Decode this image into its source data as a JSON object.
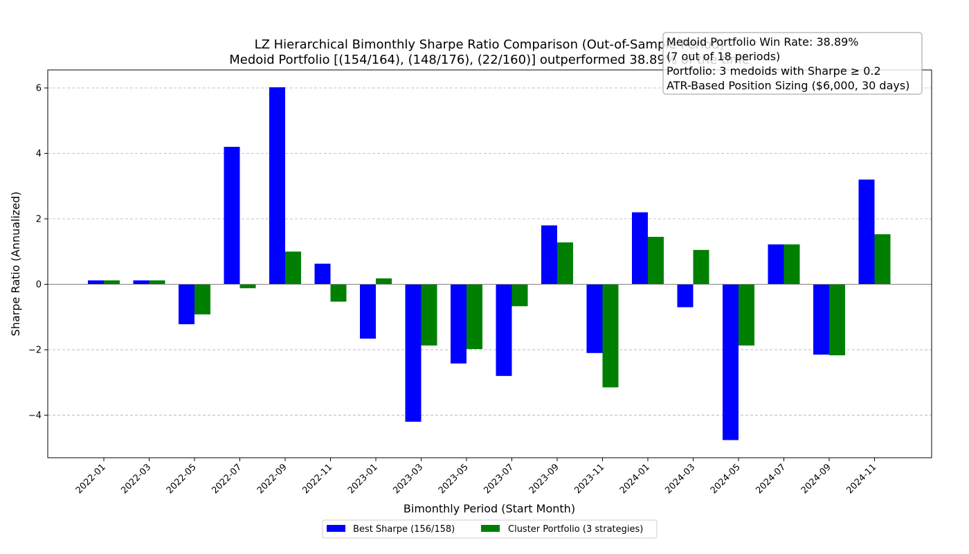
{
  "chart_data": {
    "type": "bar",
    "title": "LZ Hierarchical Bimonthly Sharpe Ratio Comparison (Out-of-Sample Period)",
    "subtitle": "Medoid Portfolio [(154/164), (148/176), (22/160)] outperformed 38.89% of the time",
    "xlabel": "Bimonthly Period (Start Month)",
    "ylabel": "Sharpe Ratio (Annualized)",
    "categories": [
      "2022-01",
      "2022-03",
      "2022-05",
      "2022-07",
      "2022-09",
      "2022-11",
      "2023-01",
      "2023-03",
      "2023-05",
      "2023-07",
      "2023-09",
      "2023-11",
      "2024-01",
      "2024-03",
      "2024-05",
      "2024-07",
      "2024-09",
      "2024-11"
    ],
    "series": [
      {
        "name": "Best Sharpe (156/158)",
        "color": "#0000ff",
        "values": [
          0.12,
          0.12,
          -1.22,
          4.2,
          6.02,
          0.63,
          -1.66,
          -4.2,
          -2.42,
          -2.8,
          1.8,
          -2.1,
          2.2,
          -0.7,
          -4.76,
          1.22,
          -2.15,
          3.2
        ]
      },
      {
        "name": "Cluster Portfolio (3 strategies)",
        "color": "#008000",
        "values": [
          0.12,
          0.12,
          -0.92,
          -0.12,
          1.0,
          -0.53,
          0.18,
          -1.87,
          -1.98,
          -0.67,
          1.28,
          -3.15,
          1.45,
          1.05,
          -1.87,
          1.22,
          -2.17,
          1.53
        ]
      }
    ],
    "ylim": [
      -5.3,
      6.55
    ],
    "yticks": [
      -4,
      -2,
      0,
      2,
      4,
      6
    ],
    "grid": "y-dashed",
    "legend": {
      "placement": "bottom-center"
    },
    "annotation": {
      "placement": "top-right",
      "lines": [
        "Medoid Portfolio Win Rate: 38.89%",
        "(7 out of 18 periods)",
        "Portfolio: 3 medoids with Sharpe ≥ 0.2",
        "ATR-Based Position Sizing ($6,000, 30 days)"
      ]
    }
  }
}
